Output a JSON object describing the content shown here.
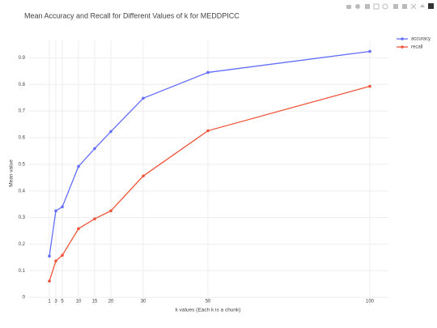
{
  "chart_data": {
    "type": "line",
    "title": "Mean Accuracy and Recall for Different Values of k for MEDDPICC",
    "x_label": "k values (Each k is a chunk)",
    "y_label": "Mean value",
    "x": [
      1,
      3,
      5,
      10,
      15,
      20,
      30,
      50,
      100
    ],
    "series": [
      {
        "name": "accuracy",
        "color": "#636efa",
        "values": [
          0.155,
          0.325,
          0.34,
          0.492,
          0.559,
          0.623,
          0.748,
          0.845,
          0.924
        ]
      },
      {
        "name": "recall",
        "color": "#ef553b",
        "values": [
          0.061,
          0.137,
          0.158,
          0.258,
          0.295,
          0.325,
          0.456,
          0.626,
          0.793
        ]
      }
    ],
    "xlim": [
      -5.5,
      105.75
    ],
    "ylim": [
      -0.033,
      0.965
    ],
    "xticks": [
      1,
      3,
      5,
      10,
      15,
      20,
      30,
      50,
      100
    ],
    "yticks": [
      0,
      0.1,
      0.2,
      0.3,
      0.4,
      0.5,
      0.6,
      0.7,
      0.8,
      0.9
    ],
    "grid": true,
    "legend": "top-right"
  }
}
